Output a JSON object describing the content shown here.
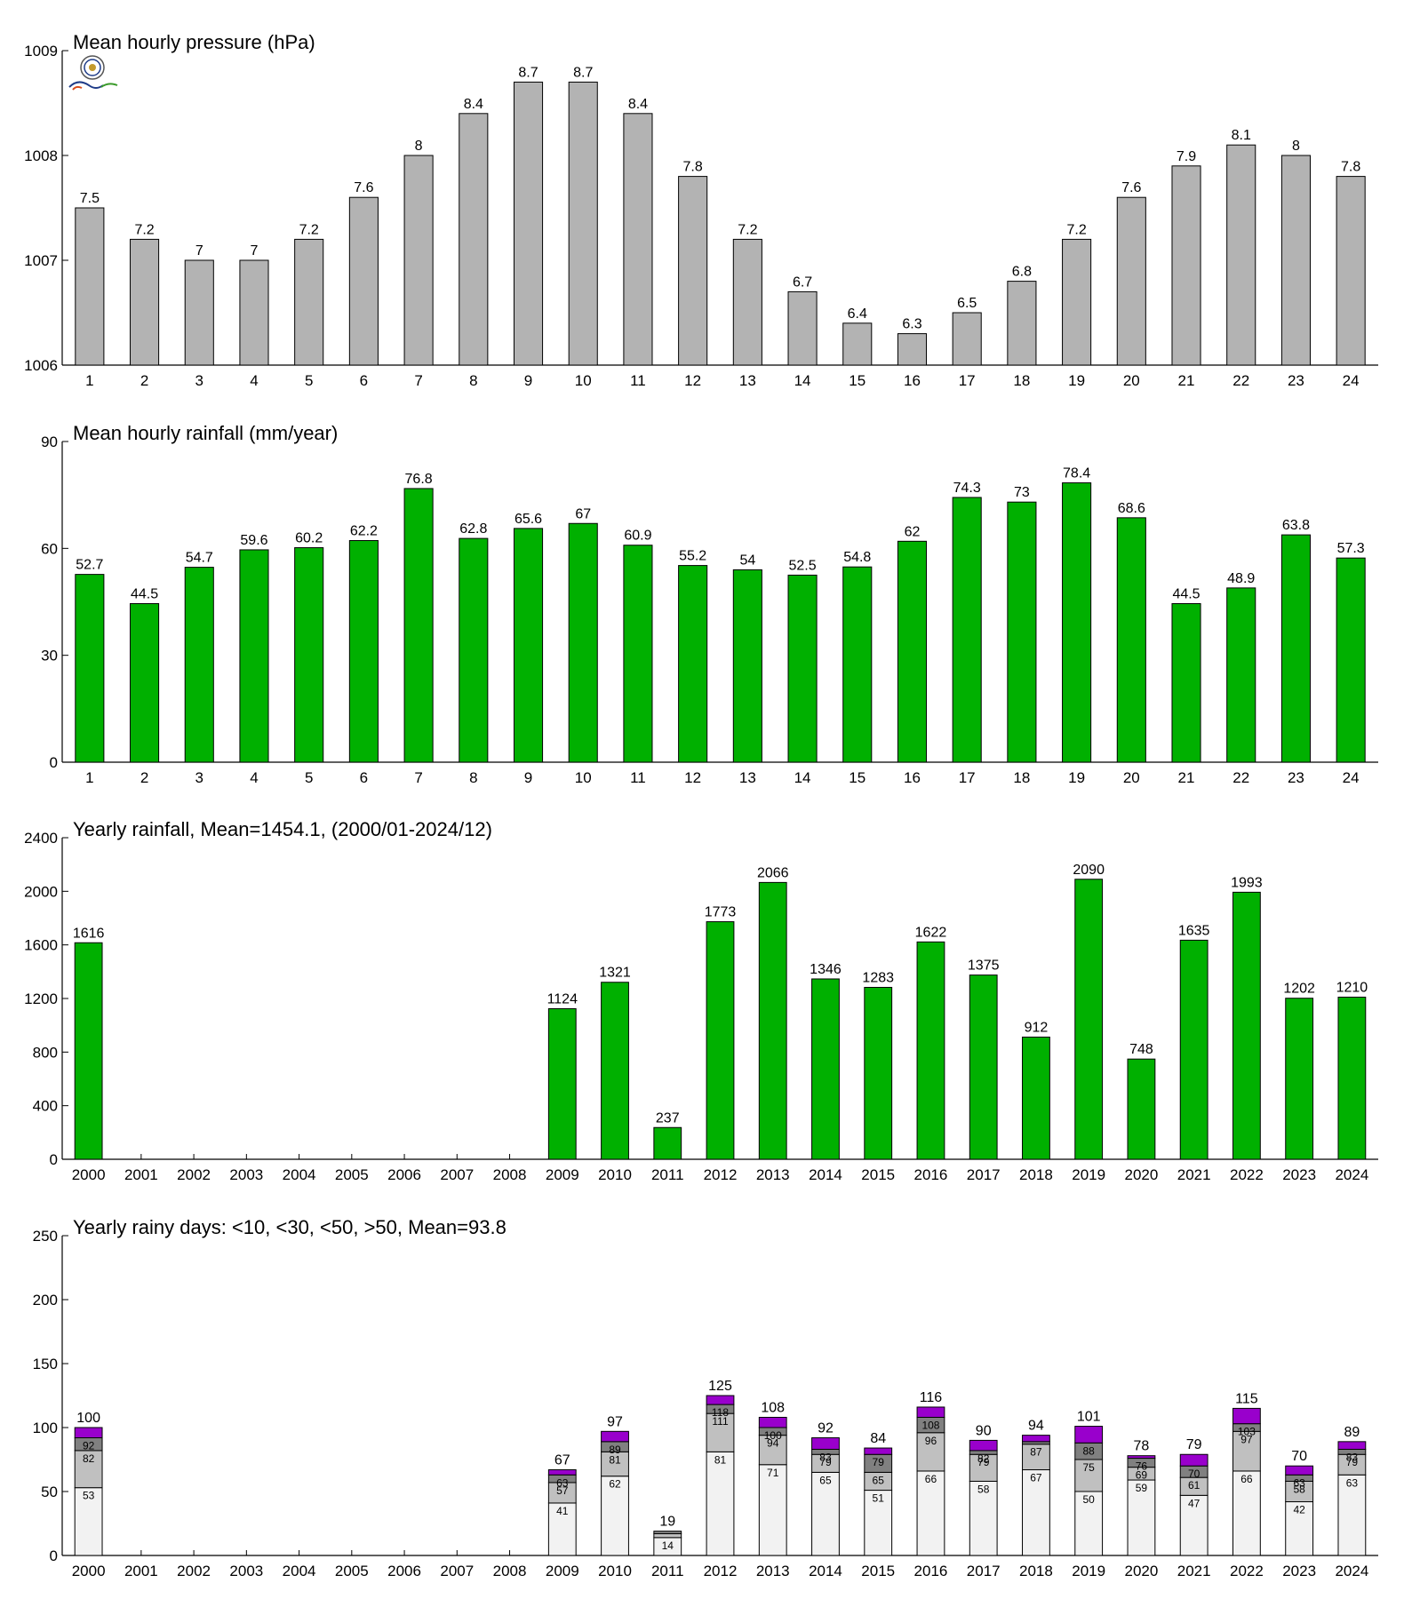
{
  "chart_data": [
    {
      "type": "bar",
      "title": "Mean hourly pressure (hPa)",
      "categories": [
        "1",
        "2",
        "3",
        "4",
        "5",
        "6",
        "7",
        "8",
        "9",
        "10",
        "11",
        "12",
        "13",
        "14",
        "15",
        "16",
        "17",
        "18",
        "19",
        "20",
        "21",
        "22",
        "23",
        "24"
      ],
      "values": [
        1007.5,
        1007.2,
        1007.0,
        1007.0,
        1007.2,
        1007.6,
        1008.0,
        1008.4,
        1008.7,
        1008.7,
        1008.4,
        1007.8,
        1007.2,
        1006.7,
        1006.4,
        1006.3,
        1006.5,
        1006.8,
        1007.2,
        1007.6,
        1007.9,
        1008.1,
        1008.0,
        1007.8
      ],
      "value_labels": [
        "7.5",
        "7.2",
        "7",
        "7",
        "7.2",
        "7.6",
        "8",
        "8.4",
        "8.7",
        "8.7",
        "8.4",
        "7.8",
        "7.2",
        "6.7",
        "6.4",
        "6.3",
        "6.5",
        "6.8",
        "7.2",
        "7.6",
        "7.9",
        "8.1",
        "8",
        "7.8"
      ],
      "ylim": [
        1006,
        1009
      ],
      "yticks": [
        "1006",
        "1007",
        "1008",
        "1009"
      ],
      "color": "#b3b3b3"
    },
    {
      "type": "bar",
      "title": "Mean hourly rainfall (mm/year)",
      "categories": [
        "1",
        "2",
        "3",
        "4",
        "5",
        "6",
        "7",
        "8",
        "9",
        "10",
        "11",
        "12",
        "13",
        "14",
        "15",
        "16",
        "17",
        "18",
        "19",
        "20",
        "21",
        "22",
        "23",
        "24"
      ],
      "values": [
        52.7,
        44.5,
        54.7,
        59.6,
        60.2,
        62.2,
        76.8,
        62.8,
        65.6,
        67,
        60.9,
        55.2,
        54,
        52.5,
        54.8,
        62,
        74.3,
        73,
        78.4,
        68.6,
        44.5,
        48.9,
        63.8,
        57.3
      ],
      "value_labels": [
        "52.7",
        "44.5",
        "54.7",
        "59.6",
        "60.2",
        "62.2",
        "76.8",
        "62.8",
        "65.6",
        "67",
        "60.9",
        "55.2",
        "54",
        "52.5",
        "54.8",
        "62",
        "74.3",
        "73",
        "78.4",
        "68.6",
        "44.5",
        "48.9",
        "63.8",
        "57.3"
      ],
      "ylim": [
        0,
        90
      ],
      "yticks": [
        "0",
        "30",
        "60",
        "90"
      ],
      "color": "#00b000"
    },
    {
      "type": "bar",
      "title": "Yearly rainfall, Mean=1454.1, (2000/01-2024/12)",
      "categories": [
        "2000",
        "2001",
        "2002",
        "2003",
        "2004",
        "2005",
        "2006",
        "2007",
        "2008",
        "2009",
        "2010",
        "2011",
        "2012",
        "2013",
        "2014",
        "2015",
        "2016",
        "2017",
        "2018",
        "2019",
        "2020",
        "2021",
        "2022",
        "2023",
        "2024"
      ],
      "values": [
        1616,
        null,
        null,
        null,
        null,
        null,
        null,
        null,
        null,
        1124,
        1321,
        237,
        1773,
        2066,
        1346,
        1283,
        1622,
        1375,
        912,
        2090,
        748,
        1635,
        1993,
        1202,
        1210
      ],
      "value_labels": [
        "1616",
        "",
        "",
        "",
        "",
        "",
        "",
        "",
        "",
        "1124",
        "1321",
        "237",
        "1773",
        "2066",
        "1346",
        "1283",
        "1622",
        "1375",
        "912",
        "2090",
        "748",
        "1635",
        "1993",
        "1202",
        "1210"
      ],
      "ylim": [
        0,
        2400
      ],
      "yticks": [
        "0",
        "400",
        "800",
        "1200",
        "1600",
        "2000",
        "2400"
      ],
      "color": "#00b000"
    },
    {
      "type": "bar",
      "stacked": true,
      "title": "Yearly rainy days: <10, <30, <50, >50, Mean=93.8",
      "categories": [
        "2000",
        "2001",
        "2002",
        "2003",
        "2004",
        "2005",
        "2006",
        "2007",
        "2008",
        "2009",
        "2010",
        "2011",
        "2012",
        "2013",
        "2014",
        "2015",
        "2016",
        "2017",
        "2018",
        "2019",
        "2020",
        "2021",
        "2022",
        "2023",
        "2024"
      ],
      "cumulative": [
        [
          53,
          82,
          92,
          100
        ],
        null,
        null,
        null,
        null,
        null,
        null,
        null,
        null,
        [
          41,
          57,
          63,
          67
        ],
        [
          62,
          81,
          89,
          97
        ],
        [
          14,
          17,
          19,
          19
        ],
        [
          81,
          111,
          118,
          125
        ],
        [
          71,
          94,
          100,
          108
        ],
        [
          65,
          79,
          83,
          92
        ],
        [
          51,
          65,
          79,
          84
        ],
        [
          66,
          96,
          108,
          116
        ],
        [
          58,
          79,
          82,
          90
        ],
        [
          67,
          87,
          89,
          94
        ],
        [
          50,
          75,
          88,
          101
        ],
        [
          59,
          69,
          76,
          78
        ],
        [
          47,
          61,
          70,
          79
        ],
        [
          66,
          97,
          103,
          115
        ],
        [
          42,
          58,
          63,
          70
        ],
        [
          63,
          79,
          83,
          89
        ]
      ],
      "inner_labels": [
        [
          "53",
          "82",
          "92"
        ],
        null,
        null,
        null,
        null,
        null,
        null,
        null,
        null,
        [
          "41",
          "57",
          "63"
        ],
        [
          "62",
          "81",
          "89"
        ],
        [
          "14",
          "",
          ""
        ],
        [
          "81",
          "111",
          "118"
        ],
        [
          "71",
          "94",
          "100"
        ],
        [
          "65",
          "79",
          "83"
        ],
        [
          "51",
          "65",
          "79"
        ],
        [
          "66",
          "96",
          "108"
        ],
        [
          "58",
          "79",
          "82"
        ],
        [
          "67",
          "87",
          ""
        ],
        [
          "50",
          "75",
          "88"
        ],
        [
          "59",
          "69",
          "76"
        ],
        [
          "47",
          "61",
          "70"
        ],
        [
          "66",
          "97",
          "103"
        ],
        [
          "42",
          "58",
          "63"
        ],
        [
          "63",
          "79",
          "83"
        ]
      ],
      "totals": [
        "100",
        "",
        "",
        "",
        "",
        "",
        "",
        "",
        "",
        "67",
        "97",
        "19",
        "125",
        "108",
        "92",
        "84",
        "116",
        "90",
        "94",
        "101",
        "78",
        "79",
        "115",
        "70",
        "89"
      ],
      "ylim": [
        0,
        250
      ],
      "yticks": [
        "0",
        "50",
        "100",
        "150",
        "200",
        "250"
      ],
      "colors": [
        "#f2f2f2",
        "#c0c0c0",
        "#808080",
        "#9900cc"
      ]
    }
  ]
}
